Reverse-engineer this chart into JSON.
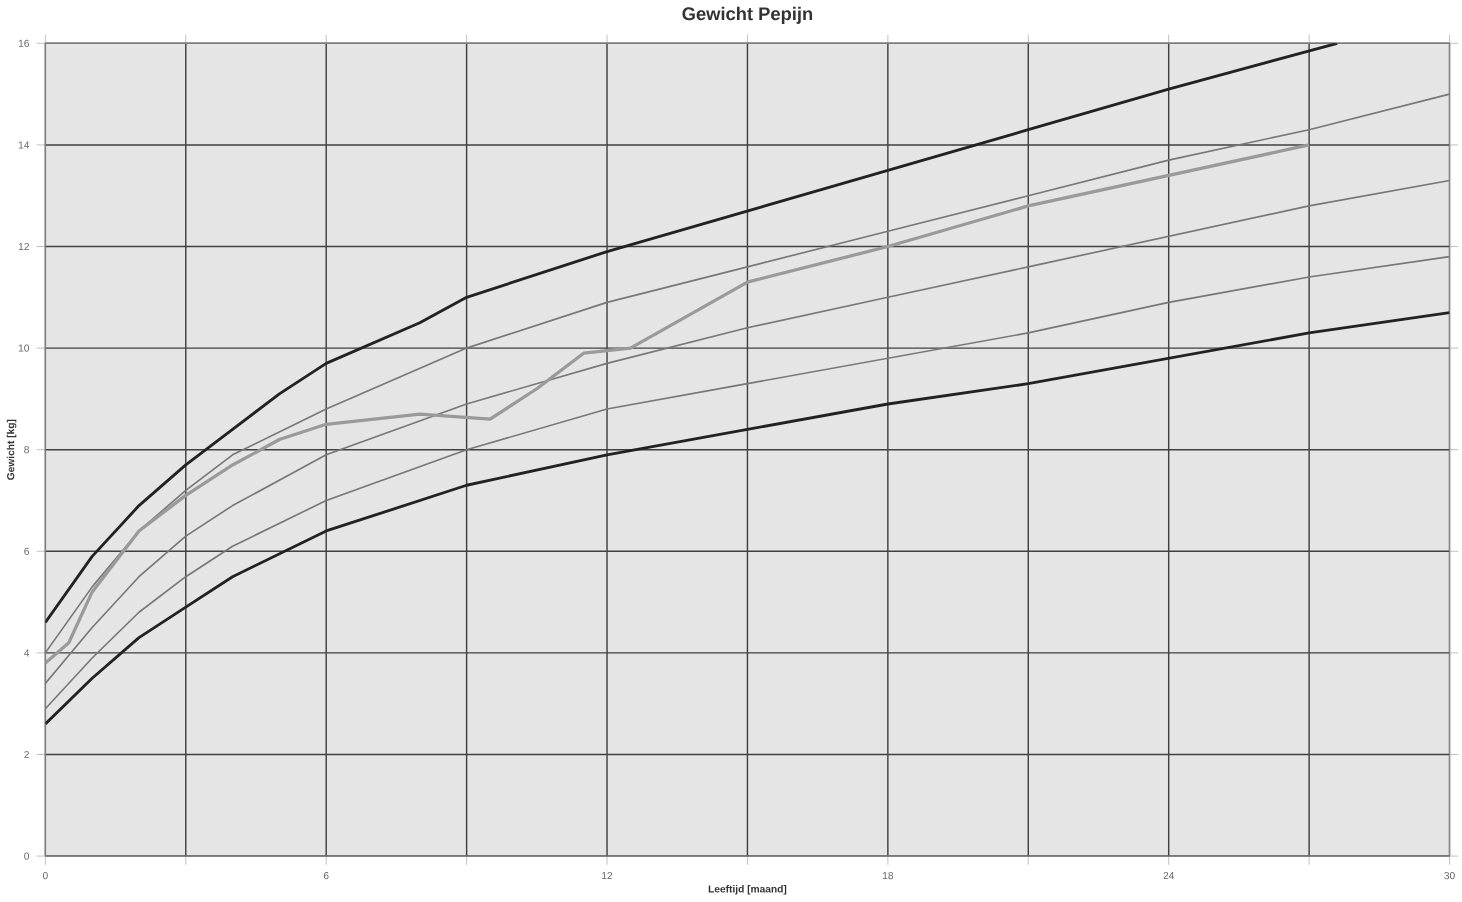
{
  "chart_data": {
    "type": "line",
    "title": "Gewicht Pepijn",
    "xlabel": "Leeftijd [maand]",
    "ylabel": "Gewicht [kg]",
    "xlim": [
      0,
      30
    ],
    "ylim": [
      0,
      16
    ],
    "xticks": [
      0,
      {
        "value": 3,
        "label": null
      },
      6,
      {
        "value": 9,
        "label": null
      },
      12,
      {
        "value": 15,
        "label": null
      },
      18,
      {
        "value": 21,
        "label": null
      },
      24,
      {
        "value": 27,
        "label": null
      },
      30
    ],
    "yticks": [
      0,
      2,
      4,
      6,
      8,
      10,
      12,
      14,
      16
    ],
    "grid": true,
    "marker": "none",
    "line_style": "solid",
    "series": [
      {
        "color": "#222222",
        "x": [
          0,
          1,
          2,
          3,
          4,
          5,
          6,
          8,
          9,
          12,
          15,
          18,
          21,
          24,
          27.6
        ],
        "values": [
          4.6,
          5.9,
          6.9,
          7.7,
          8.4,
          9.1,
          9.7,
          10.5,
          11.0,
          11.9,
          12.7,
          13.5,
          14.3,
          15.1,
          16.0
        ]
      },
      {
        "color": "#777777",
        "x": [
          0,
          1,
          2,
          3,
          4,
          6,
          9,
          12,
          15,
          18,
          21,
          24,
          27,
          30
        ],
        "values": [
          4.0,
          5.3,
          6.4,
          7.2,
          7.9,
          8.8,
          10.0,
          10.9,
          11.6,
          12.3,
          13.0,
          13.7,
          14.3,
          15.0
        ]
      },
      {
        "color": "#777777",
        "x": [
          0,
          1,
          2,
          3,
          4,
          6,
          9,
          12,
          15,
          18,
          21,
          24,
          27,
          30
        ],
        "values": [
          3.4,
          4.5,
          5.5,
          6.3,
          6.9,
          7.9,
          8.9,
          9.7,
          10.4,
          11.0,
          11.6,
          12.2,
          12.8,
          13.3
        ]
      },
      {
        "color": "#777777",
        "x": [
          0,
          1,
          2,
          3,
          4,
          6,
          9,
          12,
          15,
          18,
          21,
          24,
          27,
          30
        ],
        "values": [
          2.9,
          3.9,
          4.8,
          5.5,
          6.1,
          7.0,
          8.0,
          8.8,
          9.3,
          9.8,
          10.3,
          10.9,
          11.4,
          11.8
        ]
      },
      {
        "color": "#222222",
        "x": [
          0,
          1,
          2,
          3,
          4,
          6,
          9,
          12,
          15,
          18,
          21,
          24,
          27,
          30
        ],
        "values": [
          2.6,
          3.5,
          4.3,
          4.9,
          5.5,
          6.4,
          7.3,
          7.9,
          8.4,
          8.9,
          9.3,
          9.8,
          10.3,
          10.7
        ]
      },
      {
        "color": "#9a9a9a",
        "x": [
          0,
          0.5,
          1,
          2,
          3,
          4,
          5,
          6,
          8,
          9.5,
          10.5,
          11.5,
          12.5,
          15,
          18,
          21,
          24,
          27
        ],
        "values": [
          3.8,
          4.2,
          5.2,
          6.4,
          7.1,
          7.7,
          8.2,
          8.5,
          8.7,
          8.6,
          9.2,
          9.9,
          10.0,
          11.3,
          12.0,
          12.8,
          13.4,
          14.0
        ]
      }
    ]
  }
}
